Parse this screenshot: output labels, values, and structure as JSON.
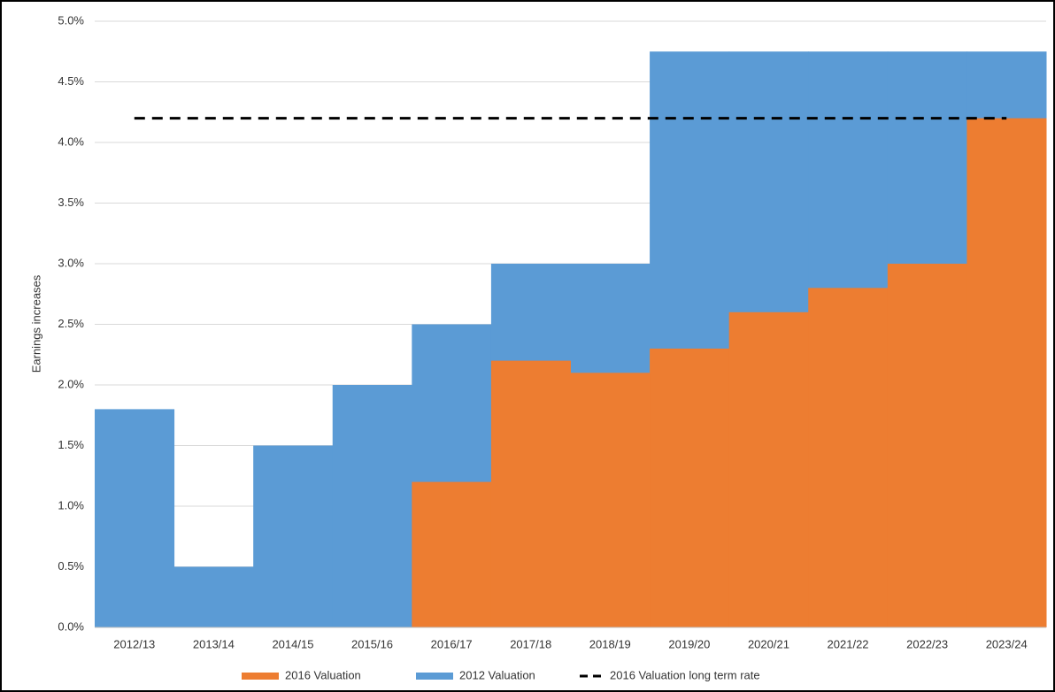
{
  "chart_data": {
    "type": "step-area",
    "y_label": "Earnings increases",
    "categories": [
      "2012/13",
      "2013/14",
      "2014/15",
      "2015/16",
      "2016/17",
      "2017/18",
      "2018/19",
      "2019/20",
      "2020/21",
      "2021/22",
      "2022/23",
      "2023/24"
    ],
    "series": [
      {
        "name": "2016 Valuation",
        "color": "#ed7d31",
        "kind": "area",
        "values": [
          null,
          null,
          null,
          null,
          1.2,
          2.2,
          2.1,
          2.3,
          2.6,
          2.8,
          3.0,
          4.2
        ]
      },
      {
        "name": "2012 Valuation",
        "color": "#5b9bd5",
        "kind": "area",
        "values": [
          1.8,
          0.5,
          1.5,
          2.0,
          2.5,
          3.0,
          3.0,
          4.75,
          4.75,
          4.75,
          4.75,
          4.75
        ]
      },
      {
        "name": "2016 Valuation long term rate",
        "color": "#000000",
        "kind": "dashed-line",
        "values": [
          4.2,
          4.2,
          4.2,
          4.2,
          4.2,
          4.2,
          4.2,
          4.2,
          4.2,
          4.2,
          4.2,
          4.2
        ]
      }
    ],
    "ylim": [
      0,
      5
    ],
    "yticks": [
      {
        "value": 0,
        "label": "0.0%"
      },
      {
        "value": 0.5,
        "label": "0.5%"
      },
      {
        "value": 1,
        "label": "1.0%"
      },
      {
        "value": 1.5,
        "label": "1.5%"
      },
      {
        "value": 2,
        "label": "2.0%"
      },
      {
        "value": 2.5,
        "label": "2.5%"
      },
      {
        "value": 3,
        "label": "3.0%"
      },
      {
        "value": 3.5,
        "label": "3.5%"
      },
      {
        "value": 4,
        "label": "4.0%"
      },
      {
        "value": 4.5,
        "label": "4.5%"
      },
      {
        "value": 5,
        "label": "5.0%"
      }
    ],
    "grid": true,
    "legend": "bottom"
  }
}
